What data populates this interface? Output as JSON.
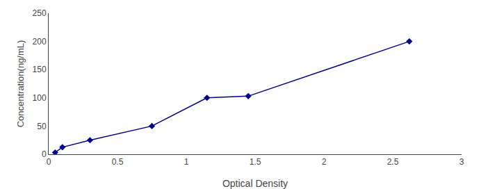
{
  "chart_data": {
    "type": "line",
    "x": [
      0.047,
      0.1,
      0.3,
      0.75,
      1.15,
      1.45,
      2.62
    ],
    "values": [
      3.125,
      12.5,
      25,
      50,
      100,
      103,
      200
    ],
    "color": "#00008B",
    "marker": "diamond",
    "line_style": "solid",
    "xlabel": "Optical Density",
    "ylabel": "Concentration(ng/mL)",
    "xlim": [
      0,
      3
    ],
    "ylim": [
      0,
      250
    ],
    "xticks": [
      0,
      0.5,
      1,
      1.5,
      2,
      2.5,
      3
    ],
    "yticks": [
      0,
      50,
      100,
      150,
      200,
      250
    ],
    "grid": false
  }
}
